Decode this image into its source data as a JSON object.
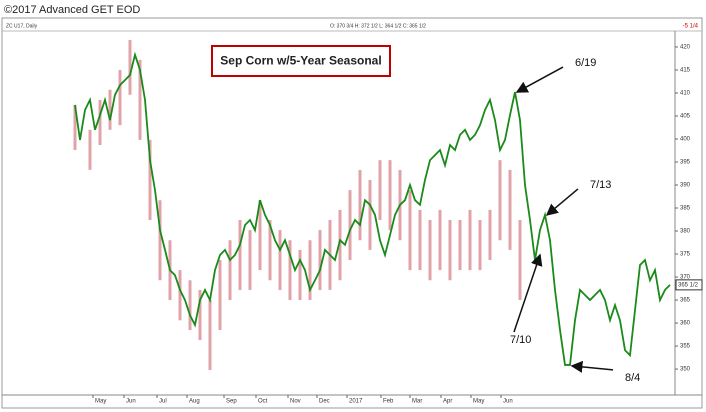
{
  "header": {
    "title": "©2017 Advanced GET EOD",
    "symbol": "ZC U17, Daily",
    "ohlc": "O: 370 3/4   H: 372 1/2   L: 364 1/2   C: 365 1/2",
    "change": "-5 1/4",
    "last": "365 1/2"
  },
  "chart_data": {
    "type": "line",
    "title": "Sep Corn w/5-Year Seasonal",
    "xlim": [
      -13,
      120
    ],
    "xticks": [
      {
        "value": 3.6,
        "label": "May"
      },
      {
        "value": 9.8,
        "label": "Jun"
      },
      {
        "value": 16.4,
        "label": "Jul"
      },
      {
        "value": 22.4,
        "label": "Aug"
      },
      {
        "value": 29.8,
        "label": "Sep"
      },
      {
        "value": 36.2,
        "label": "Oct"
      },
      {
        "value": 42.6,
        "label": "Nov"
      },
      {
        "value": 48.4,
        "label": "Dec"
      },
      {
        "value": 54.4,
        "label": "2017"
      },
      {
        "value": 61.2,
        "label": "Feb"
      },
      {
        "value": 67,
        "label": "Mar"
      },
      {
        "value": 73.2,
        "label": "Apr"
      },
      {
        "value": 79.2,
        "label": "May"
      },
      {
        "value": 85.2,
        "label": "Jun"
      }
    ],
    "ylim": [
      344.8,
      422.6
    ],
    "yticks": [
      350,
      355,
      360,
      365,
      370,
      375,
      380,
      385,
      390,
      395,
      400,
      405,
      410,
      415,
      420
    ],
    "price_bars": {
      "color": "#e0a3aa",
      "x": [
        0,
        3,
        5,
        7,
        9,
        11,
        13,
        15,
        17,
        19,
        21,
        23,
        25,
        27,
        29,
        31,
        33,
        35,
        37,
        39,
        41,
        43,
        45,
        47,
        49,
        51,
        53,
        55,
        57,
        59,
        61,
        63,
        65,
        67,
        69,
        71,
        73,
        75,
        77,
        79,
        81,
        83,
        85,
        87,
        89
      ],
      "high": [
        407.4,
        402,
        408.5,
        410.7,
        415,
        421.5,
        417.2,
        399.8,
        386.7,
        378,
        371.5,
        369.3,
        367.2,
        365,
        373.7,
        378,
        382.4,
        380.2,
        386.7,
        382.4,
        380.2,
        378,
        375.9,
        378,
        380.2,
        382.4,
        384.6,
        388.9,
        393.3,
        391.1,
        395.4,
        395.4,
        393.3,
        388.9,
        384.6,
        382.4,
        384.6,
        382.4,
        382.4,
        384.6,
        382.4,
        384.6,
        395.4,
        393.3,
        382.4
      ],
      "low": [
        397.6,
        393.3,
        398.7,
        402,
        403,
        409.6,
        399.8,
        382.4,
        369.3,
        365,
        360.6,
        358.5,
        356.3,
        349.8,
        358.5,
        365,
        367.2,
        367.2,
        371.5,
        369.3,
        367.2,
        365,
        365,
        365,
        367.2,
        367.2,
        369.3,
        373.7,
        378,
        375.9,
        382.4,
        380.2,
        378,
        371.5,
        371.5,
        369.3,
        371.5,
        369.3,
        371.5,
        371.5,
        371.5,
        373.7,
        378,
        375.9,
        365
      ]
    },
    "series": [
      {
        "color": "#1a8a1a",
        "x": [
          0,
          1,
          2,
          3,
          4,
          5,
          6,
          7,
          8,
          9,
          10,
          11,
          12,
          13,
          14,
          15,
          16,
          17,
          18,
          19,
          20,
          21,
          22,
          23,
          24,
          25,
          26,
          27,
          28,
          29,
          30,
          31,
          32,
          33,
          34,
          35,
          36,
          37,
          38,
          39,
          40,
          41,
          42,
          43,
          44,
          45,
          46,
          47,
          48,
          49,
          50,
          51,
          52,
          53,
          54,
          55,
          56,
          57,
          58,
          59,
          60,
          61,
          62,
          63,
          64,
          65,
          66,
          67,
          68,
          69,
          70,
          71,
          72,
          73,
          74,
          75,
          76,
          77,
          78,
          79,
          80,
          81,
          82,
          83,
          84,
          85,
          86,
          87,
          88,
          89,
          90,
          91,
          92,
          93,
          94,
          95,
          96,
          97,
          98,
          99,
          100,
          101,
          102,
          103,
          104,
          105,
          106,
          107,
          108,
          109,
          110,
          111,
          112,
          113,
          114,
          115,
          116,
          117,
          118,
          119
        ],
        "values": [
          407.4,
          399.8,
          406.3,
          408.5,
          402,
          405.2,
          408.5,
          404.1,
          409.6,
          411.7,
          412.8,
          413.9,
          418.3,
          415,
          408.5,
          395.4,
          388.9,
          380.2,
          375.9,
          371.5,
          370.4,
          367.2,
          365,
          361.7,
          359.6,
          365,
          367.2,
          365,
          371.5,
          374.8,
          375.9,
          373.7,
          374.8,
          377,
          381.3,
          382.4,
          380.2,
          386.7,
          383.5,
          381.3,
          378,
          375.9,
          378,
          374.8,
          371.5,
          373.7,
          371.5,
          367.2,
          369.3,
          371.5,
          375.9,
          374.8,
          373.7,
          378,
          377,
          380.2,
          382.4,
          381.3,
          386.7,
          385.7,
          383.5,
          378,
          374.8,
          379.1,
          383.5,
          385.7,
          386.7,
          390,
          386.7,
          385.7,
          391.1,
          395.4,
          396.5,
          397.6,
          394.3,
          398.7,
          397.6,
          400.9,
          402,
          399.8,
          400.9,
          403,
          406.3,
          408.5,
          404.1,
          397.6,
          399.8,
          405.2,
          410.2,
          404.1,
          390,
          382.4,
          373.7,
          380.2,
          383.5,
          378,
          367.2,
          358.5,
          350.9,
          350.9,
          360.6,
          367.2,
          366.1,
          365,
          366.1,
          367.2,
          365,
          360.6,
          363.9,
          360.6,
          354.1,
          353,
          362.8,
          372.6,
          373.7,
          369.3,
          371.5,
          365,
          367.2,
          368.3
        ]
      }
    ],
    "annotations": [
      {
        "text": "6/19",
        "x": 88,
        "y": 410.2
      },
      {
        "text": "7/13",
        "x": 94,
        "y": 383.5
      },
      {
        "text": "7/10",
        "x": 92.6,
        "y": 374.8
      },
      {
        "text": "8/4",
        "x": 99,
        "y": 350.7
      }
    ]
  }
}
